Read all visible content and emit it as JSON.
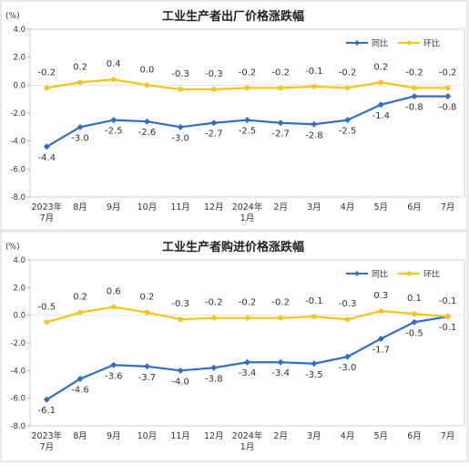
{
  "colors": {
    "yoy": "#2F6FC7",
    "mom": "#F5C518",
    "plot_bg": "#FFFFFF",
    "page_bg": "#F2F2F2",
    "frame": "#D9D9D9",
    "text": "#333333"
  },
  "chart_data": [
    {
      "type": "line",
      "title": "工业生产者出厂价格涨跌幅",
      "ylabel": "(%)",
      "ylim": [
        -8,
        4
      ],
      "yticks": [
        "4.0",
        "2.0",
        "0.0",
        "-2.0",
        "-4.0",
        "-6.0",
        "-8.0"
      ],
      "categories": [
        "2023年7月",
        "8月",
        "9月",
        "10月",
        "11月",
        "12月",
        "2024年1月",
        "2月",
        "3月",
        "4月",
        "5月",
        "6月",
        "7月"
      ],
      "category_labels": [
        [
          "2023年",
          "7月"
        ],
        [
          "8月"
        ],
        [
          "9月"
        ],
        [
          "10月"
        ],
        [
          "11月"
        ],
        [
          "12月"
        ],
        [
          "2024年",
          "1月"
        ],
        [
          "2月"
        ],
        [
          "3月"
        ],
        [
          "4月"
        ],
        [
          "5月"
        ],
        [
          "6月"
        ],
        [
          "7月"
        ]
      ],
      "legend_position": "top-right",
      "series": [
        {
          "name": "同比",
          "values": [
            -4.4,
            -3.0,
            -2.5,
            -2.6,
            -3.0,
            -2.7,
            -2.5,
            -2.7,
            -2.8,
            -2.5,
            -1.4,
            -0.8,
            -0.8
          ],
          "labels": [
            "-4.4",
            "-3.0",
            "-2.5",
            "-2.6",
            "-3.0",
            "-2.7",
            "-2.5",
            "-2.7",
            "-2.8",
            "-2.5",
            "-1.4",
            "-0.8",
            "-0.8"
          ]
        },
        {
          "name": "环比",
          "values": [
            -0.2,
            0.2,
            0.4,
            0.0,
            -0.3,
            -0.3,
            -0.2,
            -0.2,
            -0.1,
            -0.2,
            0.2,
            -0.2,
            -0.2
          ],
          "labels": [
            "-0.2",
            "0.2",
            "0.4",
            "0.0",
            "-0.3",
            "-0.3",
            "-0.2",
            "-0.2",
            "-0.1",
            "-0.2",
            "0.2",
            "-0.2",
            "-0.2"
          ]
        }
      ]
    },
    {
      "type": "line",
      "title": "工业生产者购进价格涨跌幅",
      "ylabel": "(%)",
      "ylim": [
        -8,
        4
      ],
      "yticks": [
        "4.0",
        "2.0",
        "0.0",
        "-2.0",
        "-4.0",
        "-6.0",
        "-8.0"
      ],
      "categories": [
        "2023年7月",
        "8月",
        "9月",
        "10月",
        "11月",
        "12月",
        "2024年1月",
        "2月",
        "3月",
        "4月",
        "5月",
        "6月",
        "7月"
      ],
      "category_labels": [
        [
          "2023年",
          "7月"
        ],
        [
          "8月"
        ],
        [
          "9月"
        ],
        [
          "10月"
        ],
        [
          "11月"
        ],
        [
          "12月"
        ],
        [
          "2024年",
          "1月"
        ],
        [
          "2月"
        ],
        [
          "3月"
        ],
        [
          "4月"
        ],
        [
          "5月"
        ],
        [
          "6月"
        ],
        [
          "7月"
        ]
      ],
      "legend_position": "top-right",
      "series": [
        {
          "name": "同比",
          "values": [
            -6.1,
            -4.6,
            -3.6,
            -3.7,
            -4.0,
            -3.8,
            -3.4,
            -3.4,
            -3.5,
            -3.0,
            -1.7,
            -0.5,
            -0.1
          ],
          "labels": [
            "-6.1",
            "-4.6",
            "-3.6",
            "-3.7",
            "-4.0",
            "-3.8",
            "-3.4",
            "-3.4",
            "-3.5",
            "-3.0",
            "-1.7",
            "-0.5",
            "-0.1"
          ]
        },
        {
          "name": "环比",
          "values": [
            -0.5,
            0.2,
            0.6,
            0.2,
            -0.3,
            -0.2,
            -0.2,
            -0.2,
            -0.1,
            -0.3,
            0.3,
            0.1,
            -0.1
          ],
          "labels": [
            "-0.5",
            "0.2",
            "0.6",
            "0.2",
            "-0.3",
            "-0.2",
            "-0.2",
            "-0.2",
            "-0.1",
            "-0.3",
            "0.3",
            "0.1",
            "-0.1"
          ]
        }
      ]
    }
  ]
}
